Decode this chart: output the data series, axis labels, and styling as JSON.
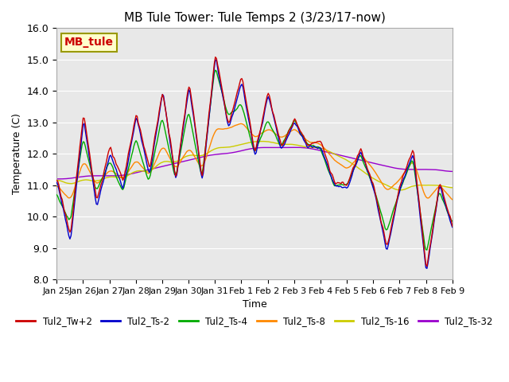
{
  "title": "MB Tule Tower: Tule Temps 2 (3/23/17-now)",
  "xlabel": "Time",
  "ylabel": "Temperature (C)",
  "ylim": [
    8.0,
    16.0
  ],
  "yticks": [
    8.0,
    9.0,
    10.0,
    11.0,
    12.0,
    13.0,
    14.0,
    15.0,
    16.0
  ],
  "x_tick_labels": [
    "Jan 25",
    "Jan 26",
    "Jan 27",
    "Jan 28",
    "Jan 29",
    "Jan 30",
    "Jan 31",
    "Feb 1",
    "Feb 2",
    "Feb 3",
    "Feb 4",
    "Feb 5",
    "Feb 6",
    "Feb 7",
    "Feb 8",
    "Feb 9"
  ],
  "series_colors": [
    "#cc0000",
    "#0000cc",
    "#00aa00",
    "#ff8800",
    "#cccc00",
    "#9900cc"
  ],
  "series_names": [
    "Tul2_Tw+2",
    "Tul2_Ts-2",
    "Tul2_Ts-4",
    "Tul2_Ts-8",
    "Tul2_Ts-16",
    "Tul2_Ts-32"
  ],
  "bg_color": "#e8e8e8",
  "watermark_text": "MB_tule",
  "watermark_color": "#cc0000",
  "watermark_bg": "#ffffcc",
  "watermark_border": "#999900",
  "n_points": 360,
  "n_days": 15
}
